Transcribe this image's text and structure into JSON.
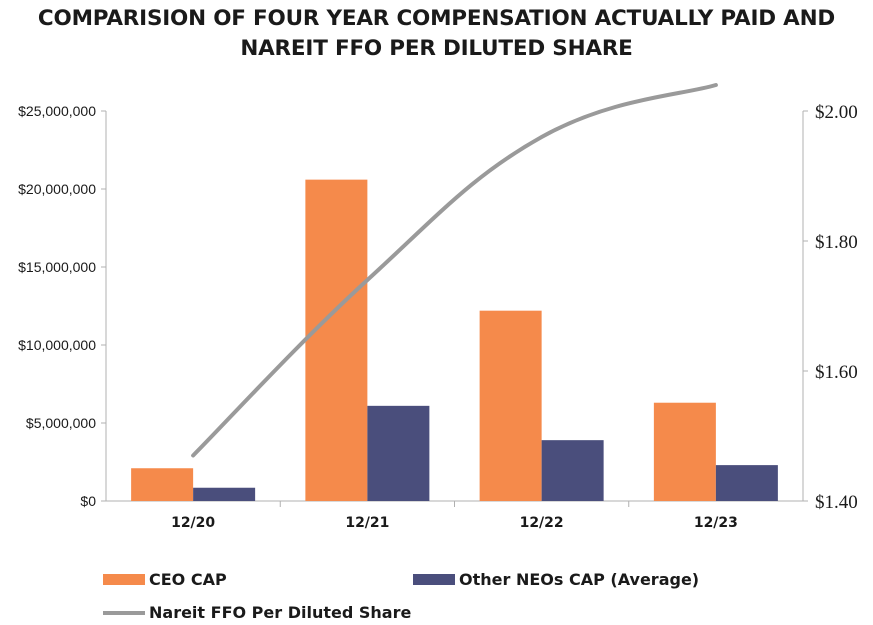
{
  "chart_data": {
    "type": "bar+line",
    "title_line1": "COMPARISION OF FOUR YEAR COMPENSATION ACTUALLY PAID AND",
    "title_line2": "NAREIT FFO PER DILUTED SHARE",
    "categories": [
      "12/20",
      "12/21",
      "12/22",
      "12/23"
    ],
    "series": [
      {
        "name": "CEO CAP",
        "type": "bar",
        "axis": "left",
        "color": "#f58a4b",
        "values": [
          2100000,
          20600000,
          12200000,
          6300000
        ]
      },
      {
        "name": "Other NEOs CAP (Average)",
        "type": "bar",
        "axis": "left",
        "color": "#4a4e7c",
        "values": [
          850000,
          6100000,
          3900000,
          2300000
        ]
      },
      {
        "name": "Nareit FFO Per Diluted Share",
        "type": "line",
        "axis": "right",
        "color": "#9a9a9a",
        "values": [
          1.47,
          1.74,
          1.96,
          2.04
        ]
      }
    ],
    "left_axis": {
      "ylim": [
        0,
        25000000
      ],
      "tick_labels": [
        "$0",
        "$5,000,000",
        "$10,000,000",
        "$15,000,000",
        "$20,000,000",
        "$25,000,000"
      ],
      "tick_values": [
        0,
        5000000,
        10000000,
        15000000,
        20000000,
        25000000
      ]
    },
    "right_axis": {
      "ylim": [
        1.4,
        2.0
      ],
      "tick_labels": [
        "$1.40",
        "$1.60",
        "$1.80",
        "$2.00"
      ],
      "tick_values": [
        1.4,
        1.6,
        1.8,
        2.0
      ]
    },
    "legend_position": "bottom-left",
    "grid": false
  }
}
